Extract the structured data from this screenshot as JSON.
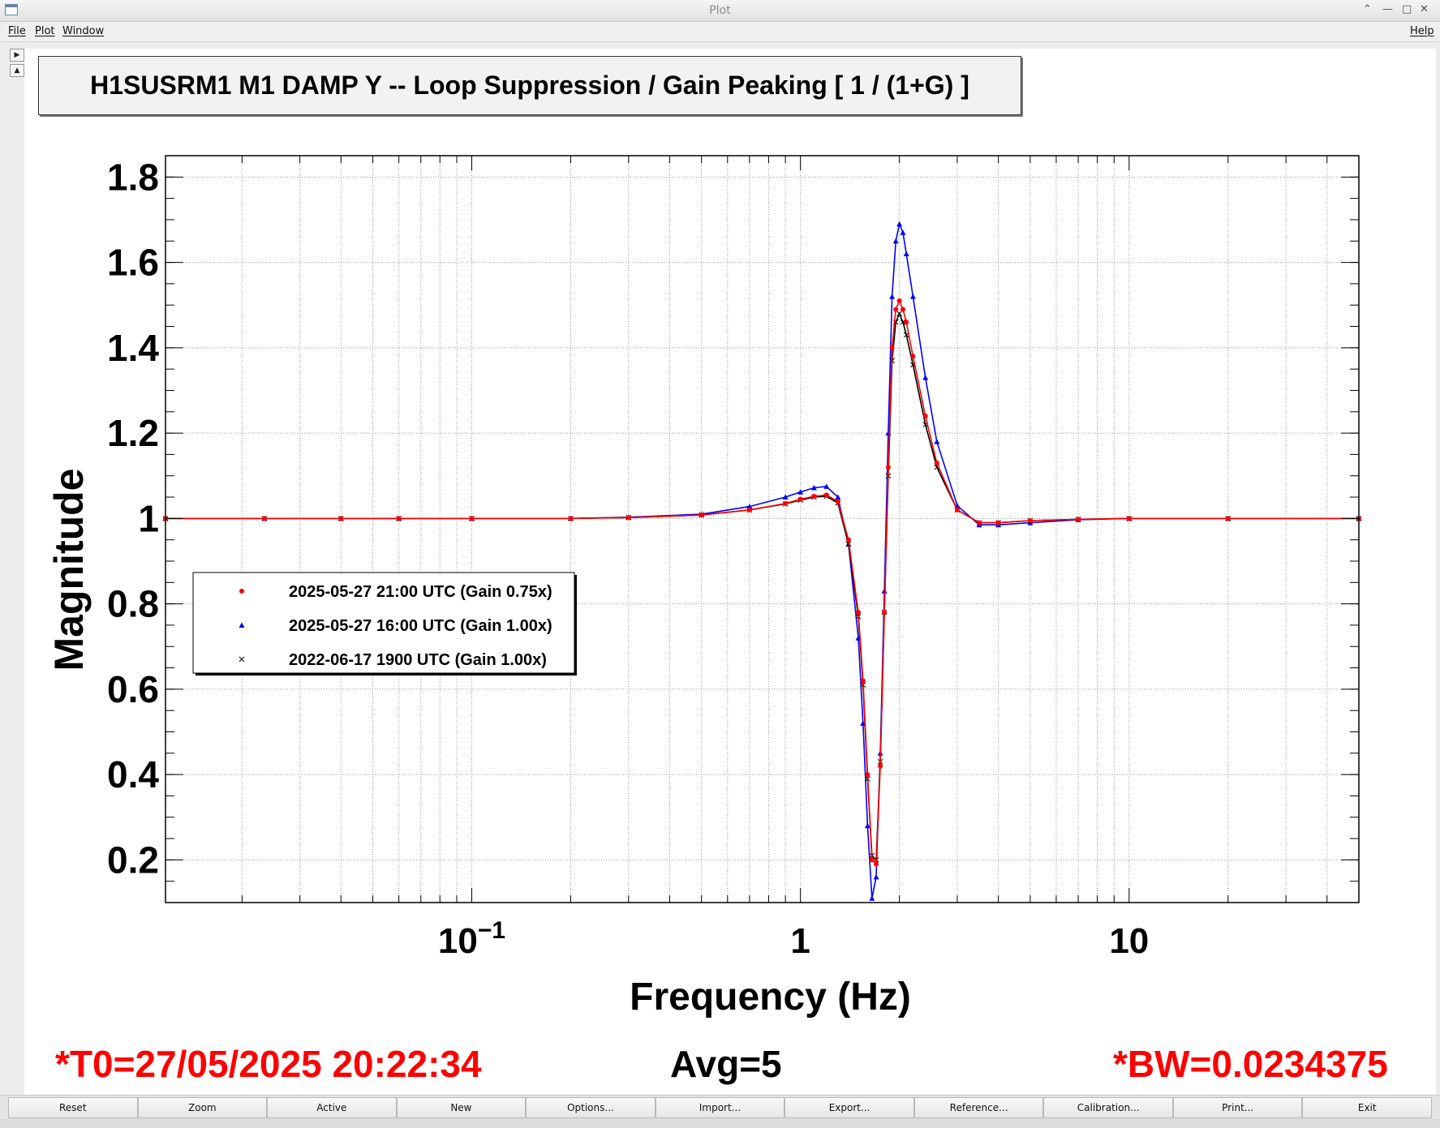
{
  "window": {
    "title": "Plot"
  },
  "menu": {
    "file": "File",
    "plot": "Plot",
    "window": "Window",
    "help": "Help"
  },
  "plot_title": "H1SUSRM1 M1 DAMP Y -- Loop Suppression / Gain Peaking [ 1 / (1+G) ]",
  "info": {
    "t0": "*T0=27/05/2025 20:22:34",
    "avg": "Avg=5",
    "bw": "*BW=0.0234375"
  },
  "buttons": [
    "Reset",
    "Zoom",
    "Active",
    "New",
    "Options...",
    "Import...",
    "Export...",
    "Reference...",
    "Calibration...",
    "Print...",
    "Exit"
  ],
  "chart_data": {
    "type": "line",
    "title": "H1SUSRM1 M1 DAMP Y -- Loop Suppression / Gain Peaking [ 1 / (1+G) ]",
    "xlabel": "Frequency (Hz)",
    "ylabel": "Magnitude",
    "x_scale": "log",
    "xlim": [
      0.0117,
      50
    ],
    "ylim": [
      0.1,
      1.85
    ],
    "x_ticks": [
      {
        "value": 0.1,
        "label": "10",
        "sup": "−1"
      },
      {
        "value": 1,
        "label": "1",
        "sup": ""
      },
      {
        "value": 10,
        "label": "10",
        "sup": ""
      }
    ],
    "y_ticks": [
      0.2,
      0.4,
      0.6,
      0.8,
      1,
      1.2,
      1.4,
      1.6,
      1.8
    ],
    "y_tick_labels": [
      "0.2",
      "0.4",
      "0.6",
      "0.8",
      "1",
      "1.2",
      "1.4",
      "1.6",
      "1.8"
    ],
    "grid": true,
    "legend_position": "left-middle",
    "series": [
      {
        "name": "2025-05-27 21:00 UTC (Gain 0.75x)",
        "color": "#ff0000",
        "marker": "circle",
        "x": [
          0.0117,
          0.0234,
          0.04,
          0.06,
          0.1,
          0.2,
          0.3,
          0.5,
          0.7,
          0.9,
          1.0,
          1.1,
          1.2,
          1.3,
          1.4,
          1.5,
          1.55,
          1.6,
          1.65,
          1.7,
          1.75,
          1.8,
          1.85,
          1.9,
          1.95,
          2.0,
          2.05,
          2.1,
          2.2,
          2.4,
          2.6,
          3.0,
          3.5,
          4.0,
          5.0,
          7.0,
          10,
          20,
          50
        ],
        "y": [
          1.0,
          1.0,
          1.0,
          1.0,
          1.0,
          1.0,
          1.002,
          1.008,
          1.02,
          1.035,
          1.045,
          1.052,
          1.055,
          1.04,
          0.95,
          0.78,
          0.62,
          0.4,
          0.2,
          0.19,
          0.42,
          0.78,
          1.12,
          1.4,
          1.49,
          1.51,
          1.49,
          1.46,
          1.38,
          1.24,
          1.13,
          1.02,
          0.99,
          0.99,
          0.995,
          0.998,
          1.0,
          1.0,
          1.0
        ]
      },
      {
        "name": "2025-05-27 16:00 UTC (Gain 1.00x)",
        "color": "#0000ff",
        "marker": "triangle",
        "x": [
          0.0117,
          0.0234,
          0.04,
          0.06,
          0.1,
          0.2,
          0.3,
          0.5,
          0.7,
          0.9,
          1.0,
          1.1,
          1.2,
          1.3,
          1.4,
          1.5,
          1.55,
          1.6,
          1.65,
          1.7,
          1.75,
          1.8,
          1.85,
          1.9,
          1.95,
          2.0,
          2.05,
          2.1,
          2.2,
          2.4,
          2.6,
          3.0,
          3.5,
          4.0,
          5.0,
          7.0,
          10,
          20,
          50
        ],
        "y": [
          1.0,
          1.0,
          1.0,
          1.0,
          1.0,
          1.0,
          1.003,
          1.01,
          1.028,
          1.05,
          1.062,
          1.072,
          1.075,
          1.05,
          0.94,
          0.72,
          0.52,
          0.28,
          0.11,
          0.16,
          0.45,
          0.83,
          1.2,
          1.52,
          1.65,
          1.69,
          1.67,
          1.62,
          1.52,
          1.33,
          1.18,
          1.03,
          0.985,
          0.985,
          0.99,
          0.997,
          1.0,
          1.0,
          1.0
        ]
      },
      {
        "name": "2022-06-17 1900 UTC (Gain 1.00x)",
        "color": "#000000",
        "marker": "cross",
        "x": [
          0.0117,
          0.0234,
          0.04,
          0.06,
          0.1,
          0.2,
          0.3,
          0.5,
          0.7,
          0.9,
          1.0,
          1.1,
          1.2,
          1.3,
          1.4,
          1.5,
          1.55,
          1.6,
          1.65,
          1.7,
          1.75,
          1.8,
          1.85,
          1.9,
          1.95,
          2.0,
          2.05,
          2.1,
          2.2,
          2.4,
          2.6,
          3.0,
          3.5,
          4.0,
          5.0,
          7.0,
          10,
          20,
          50
        ],
        "y": [
          1.0,
          1.0,
          1.0,
          1.0,
          1.0,
          1.0,
          1.002,
          1.008,
          1.02,
          1.034,
          1.043,
          1.05,
          1.052,
          1.036,
          0.94,
          0.77,
          0.61,
          0.39,
          0.21,
          0.2,
          0.43,
          0.78,
          1.1,
          1.37,
          1.46,
          1.48,
          1.46,
          1.43,
          1.36,
          1.22,
          1.12,
          1.02,
          0.99,
          0.99,
          0.995,
          0.998,
          1.0,
          1.0,
          1.0
        ]
      }
    ]
  }
}
